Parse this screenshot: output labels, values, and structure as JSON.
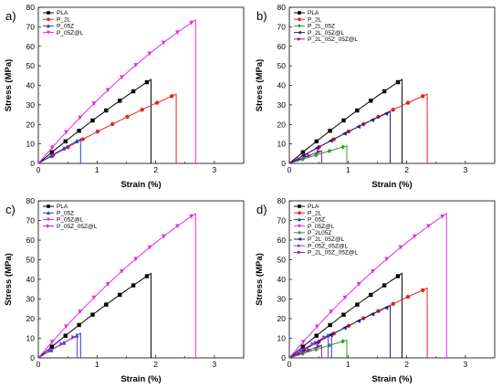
{
  "chart_data": [
    {
      "panel": "a)",
      "type": "line",
      "xlabel": "Strain (%)",
      "ylabel": "Stress (MPa)",
      "xlim": [
        0,
        3.5
      ],
      "ylim": [
        0,
        80
      ],
      "xticks": [
        "0",
        "1",
        "2",
        "3"
      ],
      "yticks": [
        "0",
        "10",
        "20",
        "30",
        "40",
        "50",
        "60",
        "70",
        "80"
      ],
      "legend_position": "top-left",
      "series": [
        {
          "name": "PLA",
          "color": "#000000",
          "marker": "square",
          "break_strain": 1.92,
          "max_stress": 43
        },
        {
          "name": "P_2L",
          "color": "#e8231c",
          "marker": "circle",
          "break_strain": 2.35,
          "max_stress": 35.5
        },
        {
          "name": "P_05Z",
          "color": "#1f3fd6",
          "marker": "triangle-up",
          "break_strain": 0.72,
          "max_stress": 12.5
        },
        {
          "name": "P_05Z@L",
          "color": "#e62ae6",
          "marker": "triangle-down",
          "break_strain": 2.68,
          "max_stress": 73.5
        }
      ]
    },
    {
      "panel": "b)",
      "type": "line",
      "xlabel": "Strain (%)",
      "ylabel": "Stress (MPa)",
      "xlim": [
        0,
        3.5
      ],
      "ylim": [
        0,
        80
      ],
      "xticks": [
        "0",
        "1",
        "2",
        "3"
      ],
      "yticks": [
        "0",
        "10",
        "20",
        "30",
        "40",
        "50",
        "60",
        "70",
        "80"
      ],
      "legend_position": "top-left",
      "series": [
        {
          "name": "PLA",
          "color": "#000000",
          "marker": "square",
          "break_strain": 1.92,
          "max_stress": 43
        },
        {
          "name": "P_2L",
          "color": "#e8231c",
          "marker": "circle",
          "break_strain": 2.35,
          "max_stress": 35.5
        },
        {
          "name": "P_2L_05Z",
          "color": "#1fa01f",
          "marker": "diamond",
          "break_strain": 0.98,
          "max_stress": 9
        },
        {
          "name": "P_2L_05Z@L",
          "color": "#1c1c8a",
          "marker": "triangle-left",
          "break_strain": 1.72,
          "max_stress": 26.5
        },
        {
          "name": "P_2L_05Z_05Z@L",
          "color": "#7a1f8a",
          "marker": "triangle-right",
          "break_strain": 0.55,
          "max_stress": 6.5
        }
      ]
    },
    {
      "panel": "c)",
      "type": "line",
      "xlabel": "Strain (%)",
      "ylabel": "Stress (MPa)",
      "xlim": [
        0,
        3.5
      ],
      "ylim": [
        0,
        80
      ],
      "xticks": [
        "0",
        "1",
        "2",
        "3"
      ],
      "yticks": [
        "0",
        "10",
        "20",
        "30",
        "40",
        "50",
        "60",
        "70",
        "80"
      ],
      "legend_position": "top-left",
      "series": [
        {
          "name": "PLA",
          "color": "#000000",
          "marker": "square",
          "break_strain": 1.92,
          "max_stress": 43
        },
        {
          "name": "P_05Z",
          "color": "#1f3fd6",
          "marker": "triangle-up",
          "break_strain": 0.72,
          "max_stress": 12.5
        },
        {
          "name": "P_05Z@L",
          "color": "#e62ae6",
          "marker": "triangle-down",
          "break_strain": 2.68,
          "max_stress": 73.5
        },
        {
          "name": "P_05Z_05Z@L",
          "color": "#8b2fd6",
          "marker": "triangle-right",
          "break_strain": 0.66,
          "max_stress": 11.5
        }
      ]
    },
    {
      "panel": "d)",
      "type": "line",
      "xlabel": "Strain (%)",
      "ylabel": "Stress (MPa)",
      "xlim": [
        0,
        3.5
      ],
      "ylim": [
        0,
        80
      ],
      "xticks": [
        "0",
        "1",
        "2",
        "3"
      ],
      "yticks": [
        "0",
        "10",
        "20",
        "30",
        "40",
        "50",
        "60",
        "70",
        "80"
      ],
      "legend_position": "top-left",
      "series": [
        {
          "name": "PLA",
          "color": "#000000",
          "marker": "square",
          "break_strain": 1.92,
          "max_stress": 43
        },
        {
          "name": "P_2L",
          "color": "#e8231c",
          "marker": "circle",
          "break_strain": 2.35,
          "max_stress": 35.5
        },
        {
          "name": "P_05Z",
          "color": "#1f3fd6",
          "marker": "triangle-up",
          "break_strain": 0.72,
          "max_stress": 12.5
        },
        {
          "name": "P_05Z@L",
          "color": "#e62ae6",
          "marker": "triangle-down",
          "break_strain": 2.68,
          "max_stress": 73.5
        },
        {
          "name": "P_2L05Z",
          "color": "#1fa01f",
          "marker": "diamond",
          "break_strain": 0.98,
          "max_stress": 9
        },
        {
          "name": "P_2L_05Z@L",
          "color": "#1c1c8a",
          "marker": "triangle-left",
          "break_strain": 1.72,
          "max_stress": 26.5
        },
        {
          "name": "P_05Z_05Z@L",
          "color": "#8b2fd6",
          "marker": "triangle-right",
          "break_strain": 0.66,
          "max_stress": 11.5
        },
        {
          "name": "P_2L_05Z_05Z@L",
          "color": "#7a1f8a",
          "marker": "triangle-right",
          "break_strain": 0.55,
          "max_stress": 6.5
        }
      ]
    }
  ]
}
